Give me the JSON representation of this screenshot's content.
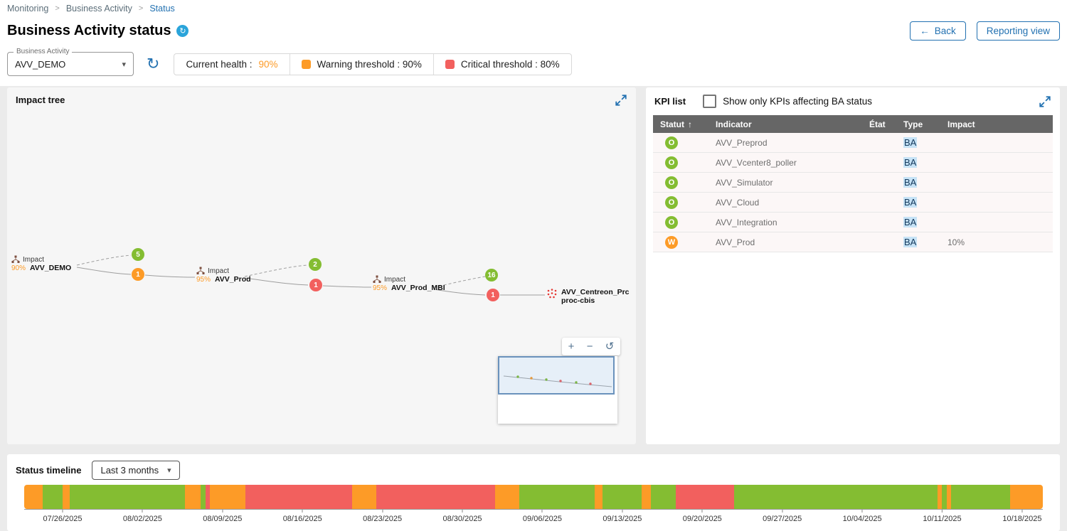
{
  "colors": {
    "ok": "#84bd32",
    "warning": "#fd9b27",
    "critical": "#f2605e",
    "accent": "#2271b1"
  },
  "icons": {
    "breadcrumb_separator": ">",
    "title_badge": "↻",
    "back_arrow": "←",
    "refresh": "↻",
    "select_caret": "▾",
    "sort_asc": "↑",
    "zoom_in": "+",
    "zoom_out": "−",
    "zoom_reset": "↺"
  },
  "breadcrumb": {
    "items": [
      {
        "label": "Monitoring"
      },
      {
        "label": "Business Activity"
      },
      {
        "label": "Status"
      }
    ]
  },
  "header": {
    "title": "Business Activity status",
    "back_label": "Back",
    "reporting_label": "Reporting view"
  },
  "controls": {
    "ba_label": "Business Activity",
    "ba_value": "AVV_DEMO",
    "health_label": "Current health :",
    "health_value": "90%",
    "warning_chip": "Warning threshold : 90%",
    "critical_chip": "Critical threshold : 80%"
  },
  "impact_tree": {
    "title": "Impact tree",
    "nodes": [
      {
        "impact": "Impact",
        "name": "AVV_DEMO",
        "health": "90%"
      },
      {
        "impact": "Impact",
        "name": "AVV_Prod",
        "health": "95%"
      },
      {
        "impact": "Impact",
        "name": "AVV_Prod_MBI",
        "health": "95%"
      },
      {
        "name": "AVV_Centreon_Prc",
        "name2": "proc-cbis"
      }
    ],
    "badges": [
      {
        "value": "5",
        "status": "ok"
      },
      {
        "value": "1",
        "status": "warning"
      },
      {
        "value": "2",
        "status": "ok"
      },
      {
        "value": "1",
        "status": "critical"
      },
      {
        "value": "16",
        "status": "ok"
      },
      {
        "value": "1",
        "status": "critical"
      }
    ]
  },
  "kpi_list": {
    "title": "KPI list",
    "filter_label": "Show only KPIs affecting BA status",
    "columns": [
      "Statut",
      "Indicator",
      "État",
      "Type",
      "Impact"
    ],
    "rows": [
      {
        "status": "O",
        "kind": "ok",
        "indicator": "AVV_Preprod",
        "etat": "",
        "type": "BA",
        "impact": ""
      },
      {
        "status": "O",
        "kind": "ok",
        "indicator": "AVV_Vcenter8_poller",
        "etat": "",
        "type": "BA",
        "impact": ""
      },
      {
        "status": "O",
        "kind": "ok",
        "indicator": "AVV_Simulator",
        "etat": "",
        "type": "BA",
        "impact": ""
      },
      {
        "status": "O",
        "kind": "ok",
        "indicator": "AVV_Cloud",
        "etat": "",
        "type": "BA",
        "impact": ""
      },
      {
        "status": "O",
        "kind": "ok",
        "indicator": "AVV_Integration",
        "etat": "",
        "type": "BA",
        "impact": ""
      },
      {
        "status": "W",
        "kind": "warning",
        "indicator": "AVV_Prod",
        "etat": "",
        "type": "BA",
        "impact": "10%"
      }
    ]
  },
  "timeline": {
    "title": "Status timeline",
    "range_value": "Last 3 months",
    "ticks": [
      "07/26/2025",
      "08/02/2025",
      "08/09/2025",
      "08/16/2025",
      "08/23/2025",
      "08/30/2025",
      "09/06/2025",
      "09/13/2025",
      "09/20/2025",
      "09/27/2025",
      "10/04/2025",
      "10/11/2025",
      "10/18/2025"
    ],
    "segments": [
      {
        "status": "warning",
        "width": 1.8
      },
      {
        "status": "ok",
        "width": 2.0
      },
      {
        "status": "warning",
        "width": 0.7
      },
      {
        "status": "ok",
        "width": 11.3
      },
      {
        "status": "warning",
        "width": 1.5
      },
      {
        "status": "ok",
        "width": 0.5
      },
      {
        "status": "critical",
        "width": 0.4
      },
      {
        "status": "warning",
        "width": 3.5
      },
      {
        "status": "critical",
        "width": 10.5
      },
      {
        "status": "warning",
        "width": 2.4
      },
      {
        "status": "critical",
        "width": 11.6
      },
      {
        "status": "warning",
        "width": 2.4
      },
      {
        "status": "ok",
        "width": 7.4
      },
      {
        "status": "warning",
        "width": 0.8
      },
      {
        "status": "ok",
        "width": 3.8
      },
      {
        "status": "warning",
        "width": 0.9
      },
      {
        "status": "ok",
        "width": 2.5
      },
      {
        "status": "critical",
        "width": 5.7
      },
      {
        "status": "ok",
        "width": 20.0
      },
      {
        "status": "warning",
        "width": 0.4
      },
      {
        "status": "ok",
        "width": 0.5
      },
      {
        "status": "warning",
        "width": 0.4
      },
      {
        "status": "ok",
        "width": 5.8
      },
      {
        "status": "warning",
        "width": 3.2
      }
    ]
  }
}
